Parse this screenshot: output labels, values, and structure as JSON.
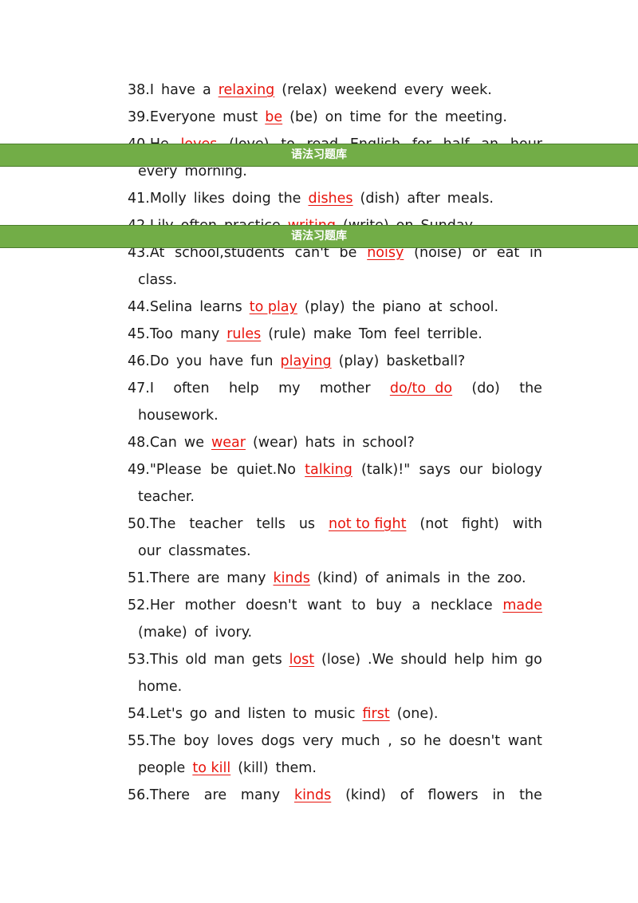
{
  "banner_text": "语法习题库",
  "lines": [
    {
      "t": 96,
      "x": 160,
      "w": 460,
      "j": false,
      "seg": [
        [
          "38.I"
        ],
        [
          "have"
        ],
        [
          "a"
        ],
        [
          "relaxing",
          1
        ],
        [
          "(relax)"
        ],
        [
          "weekend"
        ],
        [
          "every"
        ],
        [
          "week."
        ]
      ]
    },
    {
      "t": 130,
      "x": 160,
      "w": 472,
      "j": false,
      "seg": [
        [
          "39.Everyone"
        ],
        [
          "must"
        ],
        [
          "be",
          1
        ],
        [
          "(be)"
        ],
        [
          "on"
        ],
        [
          "time"
        ],
        [
          "for"
        ],
        [
          "the"
        ],
        [
          "meeting."
        ]
      ]
    },
    {
      "t": 164,
      "x": 160,
      "w": 520,
      "j": true,
      "seg": [
        [
          "40.He"
        ],
        [
          "loves",
          1
        ],
        [
          "(love)"
        ],
        [
          "to"
        ],
        [
          "read"
        ],
        [
          "English"
        ],
        [
          "for"
        ],
        [
          "half"
        ],
        [
          "an"
        ],
        [
          "hour"
        ]
      ]
    },
    {
      "t": 198,
      "x": 173,
      "w": 300,
      "j": false,
      "seg": [
        [
          "every"
        ],
        [
          "morning."
        ]
      ]
    },
    {
      "t": 232,
      "x": 160,
      "w": 460,
      "j": false,
      "seg": [
        [
          "41.Molly"
        ],
        [
          "likes"
        ],
        [
          "doing"
        ],
        [
          "the"
        ],
        [
          "dishes",
          1
        ],
        [
          "(dish)"
        ],
        [
          "after"
        ],
        [
          "meals."
        ]
      ]
    },
    {
      "t": 266,
      "x": 160,
      "w": 480,
      "j": false,
      "seg": [
        [
          "42.Lily"
        ],
        [
          "often"
        ],
        [
          "practice"
        ],
        [
          "writing",
          1
        ],
        [
          "(write)"
        ],
        [
          "on"
        ],
        [
          "Sunday."
        ]
      ]
    },
    {
      "t": 300,
      "x": 160,
      "w": 520,
      "j": true,
      "seg": [
        [
          "43.At"
        ],
        [
          "school,students"
        ],
        [
          "can't"
        ],
        [
          "be"
        ],
        [
          "noisy",
          1
        ],
        [
          "(noise)"
        ],
        [
          "or"
        ],
        [
          "eat"
        ],
        [
          "in"
        ]
      ]
    },
    {
      "t": 334,
      "x": 173,
      "w": 100,
      "j": false,
      "seg": [
        [
          "class."
        ]
      ]
    },
    {
      "t": 368,
      "x": 160,
      "w": 470,
      "j": false,
      "seg": [
        [
          "44.Selina"
        ],
        [
          "learns"
        ],
        [
          "to play",
          1
        ],
        [
          "(play)"
        ],
        [
          "the"
        ],
        [
          "piano"
        ],
        [
          "at"
        ],
        [
          "school."
        ]
      ]
    },
    {
      "t": 402,
      "x": 160,
      "w": 470,
      "j": false,
      "seg": [
        [
          "45.Too"
        ],
        [
          "many"
        ],
        [
          "rules",
          1
        ],
        [
          "(rule)"
        ],
        [
          "make"
        ],
        [
          "Tom"
        ],
        [
          "feel"
        ],
        [
          "terrible."
        ]
      ]
    },
    {
      "t": 436,
      "x": 160,
      "w": 420,
      "j": false,
      "seg": [
        [
          "46.Do"
        ],
        [
          "you"
        ],
        [
          "have"
        ],
        [
          "fun"
        ],
        [
          "playing",
          1
        ],
        [
          "(play)"
        ],
        [
          "basketball?"
        ]
      ]
    },
    {
      "t": 470,
      "x": 160,
      "w": 520,
      "j": true,
      "seg": [
        [
          "47.I"
        ],
        [
          "often"
        ],
        [
          "help"
        ],
        [
          "my"
        ],
        [
          "mother"
        ],
        [
          "do/to  do",
          1
        ],
        [
          "(do)"
        ],
        [
          "the"
        ]
      ]
    },
    {
      "t": 504,
      "x": 173,
      "w": 120,
      "j": false,
      "seg": [
        [
          "housework."
        ]
      ]
    },
    {
      "t": 538,
      "x": 160,
      "w": 370,
      "j": false,
      "seg": [
        [
          "48.Can"
        ],
        [
          "we"
        ],
        [
          "wear",
          1
        ],
        [
          "(wear)"
        ],
        [
          "hats"
        ],
        [
          "in"
        ],
        [
          "school?"
        ]
      ]
    },
    {
      "t": 572,
      "x": 160,
      "w": 520,
      "j": true,
      "seg": [
        [
          "49.\"Please"
        ],
        [
          "be"
        ],
        [
          "quiet.No"
        ],
        [
          "talking",
          1
        ],
        [
          "(talk)!\""
        ],
        [
          "says"
        ],
        [
          "our"
        ],
        [
          "biology"
        ]
      ]
    },
    {
      "t": 606,
      "x": 173,
      "w": 100,
      "j": false,
      "seg": [
        [
          "teacher."
        ]
      ]
    },
    {
      "t": 640,
      "x": 160,
      "w": 520,
      "j": true,
      "seg": [
        [
          "50.The"
        ],
        [
          "teacher"
        ],
        [
          "tells"
        ],
        [
          "us"
        ],
        [
          "not to fight",
          1
        ],
        [
          "(not"
        ],
        [
          "fight)"
        ],
        [
          "with"
        ]
      ]
    },
    {
      "t": 674,
      "x": 173,
      "w": 180,
      "j": false,
      "seg": [
        [
          "our"
        ],
        [
          "classmates."
        ]
      ]
    },
    {
      "t": 708,
      "x": 160,
      "w": 500,
      "j": false,
      "seg": [
        [
          "51.There"
        ],
        [
          "are"
        ],
        [
          "many"
        ],
        [
          "kinds",
          1
        ],
        [
          "(kind)"
        ],
        [
          "of"
        ],
        [
          "animals"
        ],
        [
          "in"
        ],
        [
          "the"
        ],
        [
          "zoo."
        ]
      ]
    },
    {
      "t": 742,
      "x": 160,
      "w": 520,
      "j": true,
      "seg": [
        [
          "52.Her"
        ],
        [
          "mother"
        ],
        [
          "doesn't"
        ],
        [
          "want"
        ],
        [
          "to"
        ],
        [
          "buy"
        ],
        [
          "a"
        ],
        [
          "necklace"
        ],
        [
          "made",
          1
        ]
      ]
    },
    {
      "t": 776,
      "x": 173,
      "w": 160,
      "j": false,
      "seg": [
        [
          "(make)"
        ],
        [
          "of"
        ],
        [
          "ivory."
        ]
      ]
    },
    {
      "t": 810,
      "x": 160,
      "w": 520,
      "j": true,
      "seg": [
        [
          "53.This"
        ],
        [
          "old"
        ],
        [
          "man"
        ],
        [
          "gets"
        ],
        [
          "lost",
          1
        ],
        [
          "(lose)"
        ],
        [
          ".We"
        ],
        [
          "should"
        ],
        [
          "help"
        ],
        [
          "him"
        ],
        [
          "go"
        ]
      ]
    },
    {
      "t": 844,
      "x": 173,
      "w": 80,
      "j": false,
      "seg": [
        [
          "home."
        ]
      ]
    },
    {
      "t": 878,
      "x": 160,
      "w": 400,
      "j": false,
      "seg": [
        [
          "54.Let's"
        ],
        [
          "go"
        ],
        [
          "and"
        ],
        [
          "listen"
        ],
        [
          "to"
        ],
        [
          "music"
        ],
        [
          "first",
          1
        ],
        [
          "(one)."
        ]
      ]
    },
    {
      "t": 912,
      "x": 160,
      "w": 520,
      "j": true,
      "seg": [
        [
          "55.The"
        ],
        [
          "boy"
        ],
        [
          "loves"
        ],
        [
          "dogs"
        ],
        [
          "very"
        ],
        [
          "much"
        ],
        [
          ","
        ],
        [
          "so"
        ],
        [
          "he"
        ],
        [
          "doesn't"
        ],
        [
          "want"
        ]
      ]
    },
    {
      "t": 946,
      "x": 173,
      "w": 260,
      "j": false,
      "seg": [
        [
          "people"
        ],
        [
          "to kill",
          1
        ],
        [
          "(kill)"
        ],
        [
          "them."
        ]
      ]
    },
    {
      "t": 980,
      "x": 160,
      "w": 520,
      "j": true,
      "seg": [
        [
          "56.There"
        ],
        [
          "are"
        ],
        [
          "many"
        ],
        [
          "kinds",
          1
        ],
        [
          "(kind)"
        ],
        [
          "of"
        ],
        [
          "flowers"
        ],
        [
          "in"
        ],
        [
          "the"
        ]
      ]
    }
  ],
  "colors": {
    "answer": "#e8140c",
    "banner": "#72ad47",
    "text": "#1a1a1a"
  }
}
